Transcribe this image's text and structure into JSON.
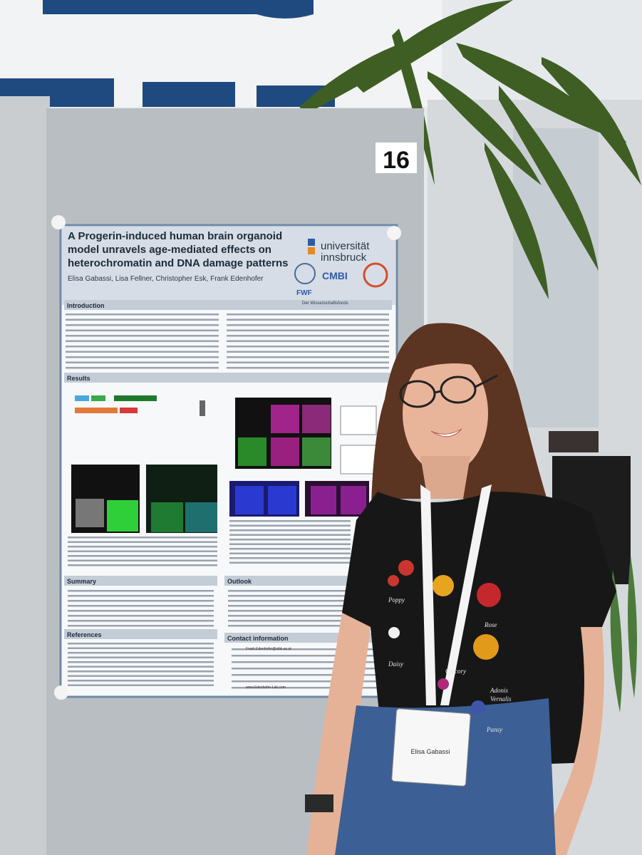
{
  "board_number": "16",
  "poster": {
    "title_lines": [
      "A Progerin-induced human brain organoid",
      "model unravels age-mediated effects on",
      "heterochromatin and DNA damage patterns"
    ],
    "authors": "Elisa Gabassi, Lisa Fellner, Christopher Esk, Frank Edenhofer",
    "university": [
      "universität",
      "innsbruck"
    ],
    "logos": [
      "CMBI",
      "FWF",
      "Der Wissenschaftsfonds"
    ],
    "sections": [
      "Introduction",
      "Results",
      "Summary",
      "Outlook",
      "References",
      "Contact information"
    ],
    "contact": [
      "Frank.Edenhofer@uibk.ac.at",
      "www.Edenhofer-Lab.com"
    ]
  },
  "badge": {
    "name": "Elisa Gabassi"
  },
  "shirt_flowers": [
    "Poppy",
    "Rose",
    "Daisy",
    "Chicory",
    "Adonis",
    "Vernalis",
    "Pansy"
  ]
}
